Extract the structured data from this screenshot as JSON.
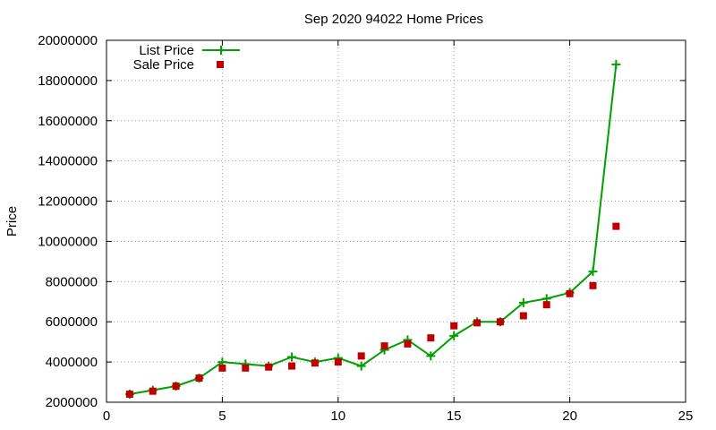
{
  "chart_data": {
    "type": "line",
    "title": "Sep 2020 94022 Home Prices",
    "xlabel": "",
    "ylabel": "Price",
    "xlim": [
      0,
      25
    ],
    "ylim": [
      2000000,
      20000000
    ],
    "x_ticks": [
      0,
      5,
      10,
      15,
      20,
      25
    ],
    "y_ticks": [
      2000000,
      4000000,
      6000000,
      8000000,
      10000000,
      12000000,
      14000000,
      16000000,
      18000000,
      20000000
    ],
    "x_tick_labels": [
      "0",
      "5",
      "10",
      "15",
      "20",
      "25"
    ],
    "y_tick_labels": [
      "2000000",
      "4000000",
      "6000000",
      "8000000",
      "10000000",
      "12000000",
      "14000000",
      "16000000",
      "18000000",
      "20000000"
    ],
    "grid": true,
    "legend_position": "top-left",
    "series": [
      {
        "name": "List Price",
        "style": "line+cross",
        "color": "#00a000",
        "x": [
          1,
          2,
          3,
          4,
          5,
          6,
          7,
          8,
          9,
          10,
          11,
          12,
          13,
          14,
          15,
          16,
          17,
          18,
          19,
          20,
          21,
          22
        ],
        "y": [
          2400000,
          2600000,
          2800000,
          3200000,
          4000000,
          3900000,
          3800000,
          4250000,
          4000000,
          4200000,
          3800000,
          4600000,
          5100000,
          4300000,
          5300000,
          6000000,
          6000000,
          6950000,
          7150000,
          7450000,
          8500000,
          18800000
        ]
      },
      {
        "name": "Sale Price",
        "style": "square",
        "color": "#c00000",
        "x": [
          1,
          2,
          3,
          4,
          5,
          6,
          7,
          8,
          9,
          10,
          11,
          12,
          13,
          14,
          15,
          16,
          17,
          18,
          19,
          20,
          21,
          22
        ],
        "y": [
          2400000,
          2550000,
          2800000,
          3200000,
          3700000,
          3700000,
          3750000,
          3800000,
          3950000,
          4000000,
          4300000,
          4800000,
          4900000,
          5200000,
          5800000,
          5950000,
          6000000,
          6300000,
          6850000,
          7400000,
          7800000,
          10750000
        ]
      }
    ]
  }
}
